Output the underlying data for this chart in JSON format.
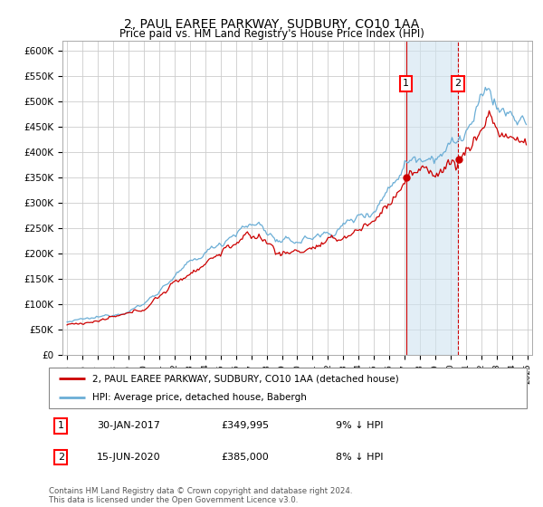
{
  "title": "2, PAUL EAREE PARKWAY, SUDBURY, CO10 1AA",
  "subtitle": "Price paid vs. HM Land Registry's House Price Index (HPI)",
  "ylabel_ticks": [
    "£0",
    "£50K",
    "£100K",
    "£150K",
    "£200K",
    "£250K",
    "£300K",
    "£350K",
    "£400K",
    "£450K",
    "£500K",
    "£550K",
    "£600K"
  ],
  "ylim": [
    0,
    620000
  ],
  "ytick_vals": [
    0,
    50000,
    100000,
    150000,
    200000,
    250000,
    300000,
    350000,
    400000,
    450000,
    500000,
    550000,
    600000
  ],
  "hpi_color": "#6baed6",
  "price_color": "#cc0000",
  "marker1_date": 2017.08,
  "marker2_date": 2020.46,
  "marker1_price": 349995,
  "marker2_price": 385000,
  "legend_line1": "2, PAUL EAREE PARKWAY, SUDBURY, CO10 1AA (detached house)",
  "legend_line2": "HPI: Average price, detached house, Babergh",
  "table_rows": [
    [
      "1",
      "30-JAN-2017",
      "£349,995",
      "9% ↓ HPI"
    ],
    [
      "2",
      "15-JUN-2020",
      "£385,000",
      "8% ↓ HPI"
    ]
  ],
  "footnote": "Contains HM Land Registry data © Crown copyright and database right 2024.\nThis data is licensed under the Open Government Licence v3.0.",
  "bg_color": "#ffffff",
  "grid_color": "#cccccc",
  "shade_color": "#d0e4f0"
}
